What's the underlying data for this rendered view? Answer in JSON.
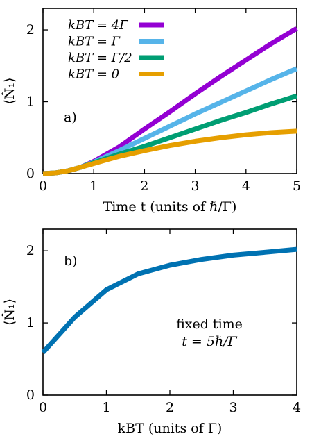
{
  "chart_data": [
    {
      "type": "line",
      "panel_tag": "a)",
      "xlabel": "Time t (units of ℏ/Γ)",
      "ylabel": "⟨N̂₁⟩",
      "xlim": [
        0,
        5
      ],
      "ylim": [
        0,
        2.3
      ],
      "xticks": [
        0,
        1,
        2,
        3,
        4,
        5
      ],
      "yticks": [
        0,
        1,
        2
      ],
      "legend_position": "top-left",
      "series": [
        {
          "name": "k_BT = 4Γ",
          "legend_label": "kBT =  4Γ",
          "color": "#9400d3",
          "x": [
            0,
            0.25,
            0.5,
            0.75,
            1.0,
            1.25,
            1.5,
            2.0,
            2.5,
            3.0,
            3.5,
            4.0,
            4.5,
            5.0
          ],
          "y": [
            0,
            0.01,
            0.04,
            0.09,
            0.17,
            0.27,
            0.37,
            0.62,
            0.86,
            1.11,
            1.35,
            1.58,
            1.81,
            2.02
          ]
        },
        {
          "name": "k_BT = Γ",
          "legend_label": "kBT =     Γ",
          "color": "#56b4e9",
          "x": [
            0,
            0.25,
            0.5,
            0.75,
            1.0,
            1.25,
            1.5,
            2.0,
            2.5,
            3.0,
            3.5,
            4.0,
            4.5,
            5.0
          ],
          "y": [
            0,
            0.01,
            0.04,
            0.09,
            0.16,
            0.24,
            0.32,
            0.49,
            0.66,
            0.83,
            0.99,
            1.15,
            1.31,
            1.46
          ]
        },
        {
          "name": "k_BT = Γ/2",
          "legend_label": "kBT = Γ/2",
          "color": "#009e73",
          "x": [
            0,
            0.25,
            0.5,
            0.75,
            1.0,
            1.25,
            1.5,
            2.0,
            2.5,
            3.0,
            3.5,
            4.0,
            4.5,
            5.0
          ],
          "y": [
            0,
            0.01,
            0.04,
            0.09,
            0.15,
            0.21,
            0.27,
            0.38,
            0.5,
            0.62,
            0.74,
            0.85,
            0.97,
            1.08
          ]
        },
        {
          "name": "k_BT = 0",
          "legend_label": "kBT =     0",
          "color": "#e69f00",
          "x": [
            0,
            0.25,
            0.5,
            0.75,
            1.0,
            1.25,
            1.5,
            2.0,
            2.5,
            3.0,
            3.5,
            4.0,
            4.5,
            5.0
          ],
          "y": [
            0,
            0.01,
            0.04,
            0.09,
            0.14,
            0.19,
            0.24,
            0.32,
            0.39,
            0.45,
            0.5,
            0.54,
            0.57,
            0.59
          ]
        }
      ]
    },
    {
      "type": "line",
      "panel_tag": "b)",
      "xlabel": "kBT (units of Γ)",
      "ylabel": "⟨N̂₁⟩",
      "xlim": [
        0,
        4
      ],
      "ylim": [
        0,
        2.3
      ],
      "xticks": [
        0,
        1,
        2,
        3,
        4
      ],
      "yticks": [
        0,
        1,
        2
      ],
      "annotation": [
        "fixed time",
        "t = 5ℏ/Γ"
      ],
      "series": [
        {
          "color": "#0072b2",
          "x": [
            0,
            0.5,
            1.0,
            1.5,
            2.0,
            2.5,
            3.0,
            3.5,
            4.0
          ],
          "y": [
            0.59,
            1.08,
            1.46,
            1.68,
            1.8,
            1.88,
            1.94,
            1.98,
            2.02
          ]
        }
      ]
    }
  ]
}
